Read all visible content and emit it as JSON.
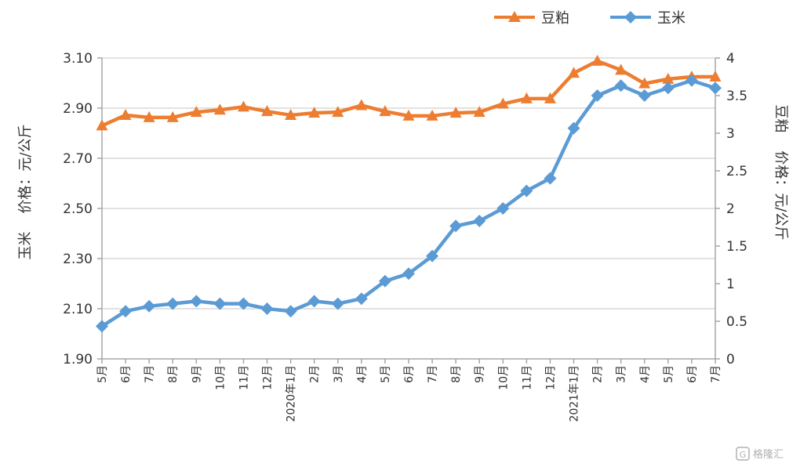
{
  "chart_data": {
    "type": "line",
    "categories": [
      "5月",
      "6月",
      "7月",
      "8月",
      "9月",
      "10月",
      "11月",
      "12月",
      "2020年1月",
      "2月",
      "3月",
      "4月",
      "5月",
      "6月",
      "7月",
      "8月",
      "9月",
      "10月",
      "11月",
      "12月",
      "2021年1月",
      "2月",
      "3月",
      "4月",
      "5月",
      "6月",
      "7月"
    ],
    "series": [
      {
        "name": "豆粕",
        "color": "#ED7D31",
        "marker": "triangle",
        "axis": "right",
        "values": [
          3.1,
          3.24,
          3.21,
          3.21,
          3.28,
          3.31,
          3.35,
          3.29,
          3.24,
          3.27,
          3.28,
          3.37,
          3.29,
          3.23,
          3.23,
          3.27,
          3.28,
          3.39,
          3.46,
          3.46,
          3.8,
          3.96,
          3.84,
          3.66,
          3.72,
          3.75,
          3.75
        ]
      },
      {
        "name": "玉米",
        "color": "#5B9BD5",
        "marker": "diamond",
        "axis": "left",
        "values": [
          2.03,
          2.09,
          2.11,
          2.12,
          2.13,
          2.12,
          2.12,
          2.1,
          2.09,
          2.13,
          2.12,
          2.14,
          2.21,
          2.24,
          2.31,
          2.43,
          2.45,
          2.5,
          2.57,
          2.62,
          2.82,
          2.95,
          2.99,
          2.95,
          2.98,
          3.01,
          2.98
        ]
      }
    ],
    "left_axis": {
      "label": "玉米    价格：元/公斤",
      "ylim": [
        1.9,
        3.1
      ],
      "ticks": [
        1.9,
        2.1,
        2.3,
        2.5,
        2.7,
        2.9,
        3.1
      ],
      "tick_labels": [
        "1.90",
        "2.10",
        "2.30",
        "2.50",
        "2.70",
        "2.90",
        "3.10"
      ]
    },
    "right_axis": {
      "label": "豆粕    价格：元/公斤",
      "ylim": [
        0,
        4
      ],
      "ticks": [
        0,
        0.5,
        1,
        1.5,
        2,
        2.5,
        3,
        3.5,
        4
      ],
      "tick_labels": [
        "0",
        "0.5",
        "1",
        "1.5",
        "2",
        "2.5",
        "3",
        "3.5",
        "4"
      ]
    },
    "grid": true,
    "legend": "top-right"
  },
  "legend": {
    "items": [
      {
        "label": "豆粕",
        "color": "#ED7D31",
        "marker": "triangle"
      },
      {
        "label": "玉米",
        "color": "#5B9BD5",
        "marker": "diamond"
      }
    ]
  },
  "watermark": {
    "text": "格隆汇"
  }
}
